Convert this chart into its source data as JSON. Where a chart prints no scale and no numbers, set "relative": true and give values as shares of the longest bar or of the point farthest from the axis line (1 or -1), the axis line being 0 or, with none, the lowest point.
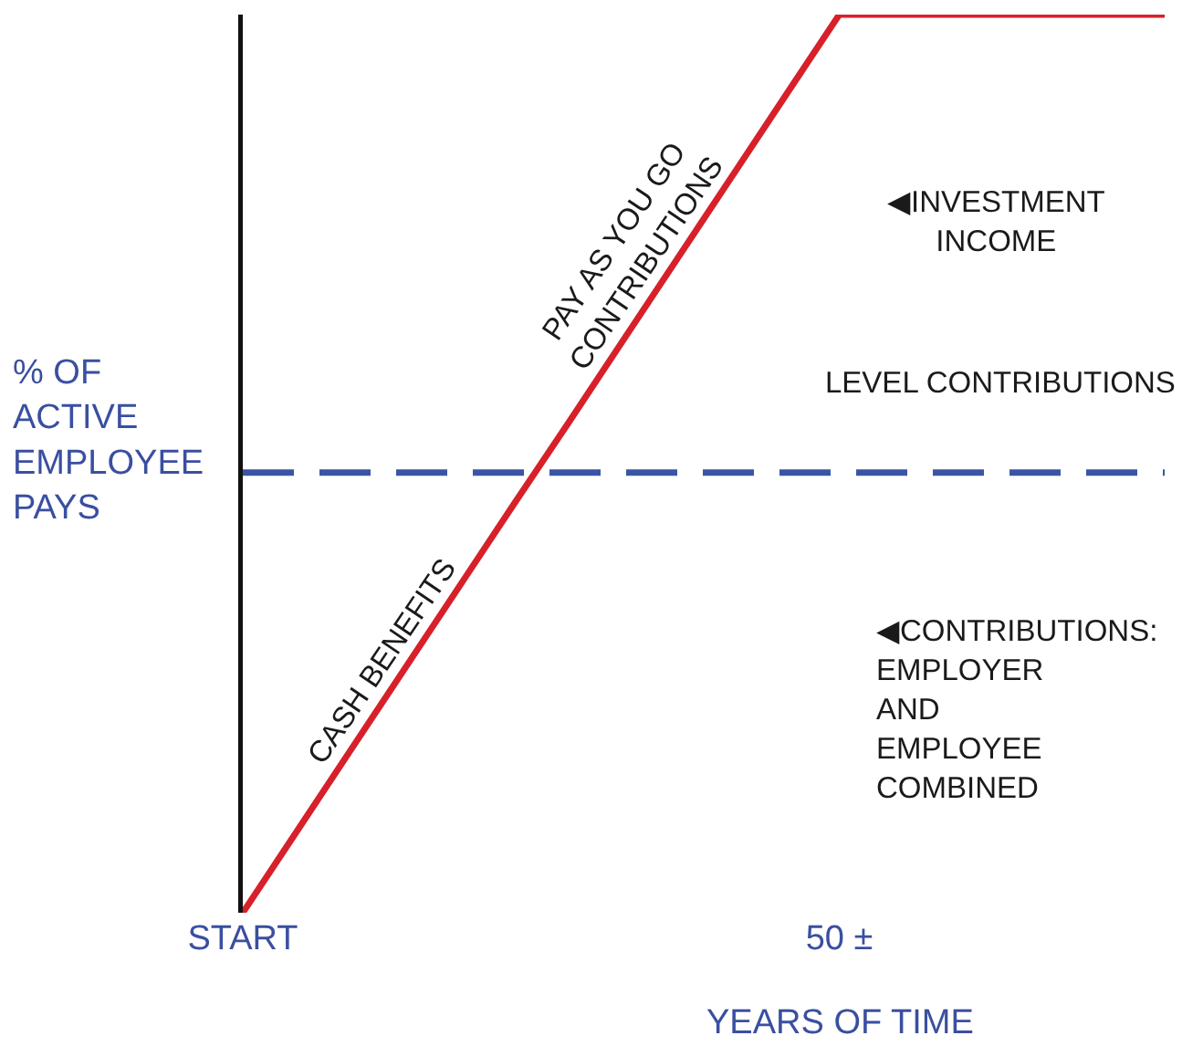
{
  "chart_data": {
    "type": "line",
    "relative": true,
    "categories": [
      "START",
      null,
      null,
      null,
      null,
      null,
      null,
      null,
      null,
      null,
      null,
      "50 ±",
      null,
      null,
      null,
      null,
      null,
      null
    ],
    "series": [
      {
        "color": "#d7202a",
        "values": [
          0,
          0.091,
          0.182,
          0.273,
          0.364,
          0.455,
          0.545,
          0.636,
          0.727,
          0.818,
          0.909,
          1,
          1,
          1,
          1,
          1,
          1,
          1
        ]
      }
    ],
    "xlabel": "YEARS OF TIME",
    "ylabel": "% OF ACTIVE EMPLOYEE PAYS",
    "ref_lines": [
      {
        "axis": "y",
        "value": 0.49,
        "color": "#3a55a5",
        "line_style": "dashed"
      }
    ],
    "annotations": [
      "PAY AS YOU GO CONTRIBUTIONS",
      "CASH BENEFITS",
      "◀INVESTMENT INCOME",
      "LEVEL CONTRIBUTIONS",
      "◀CONTRIBUTIONS: EMPLOYER AND EMPLOYEE COMBINED"
    ],
    "grid": false,
    "marker": "none",
    "line_style": "solid"
  }
}
